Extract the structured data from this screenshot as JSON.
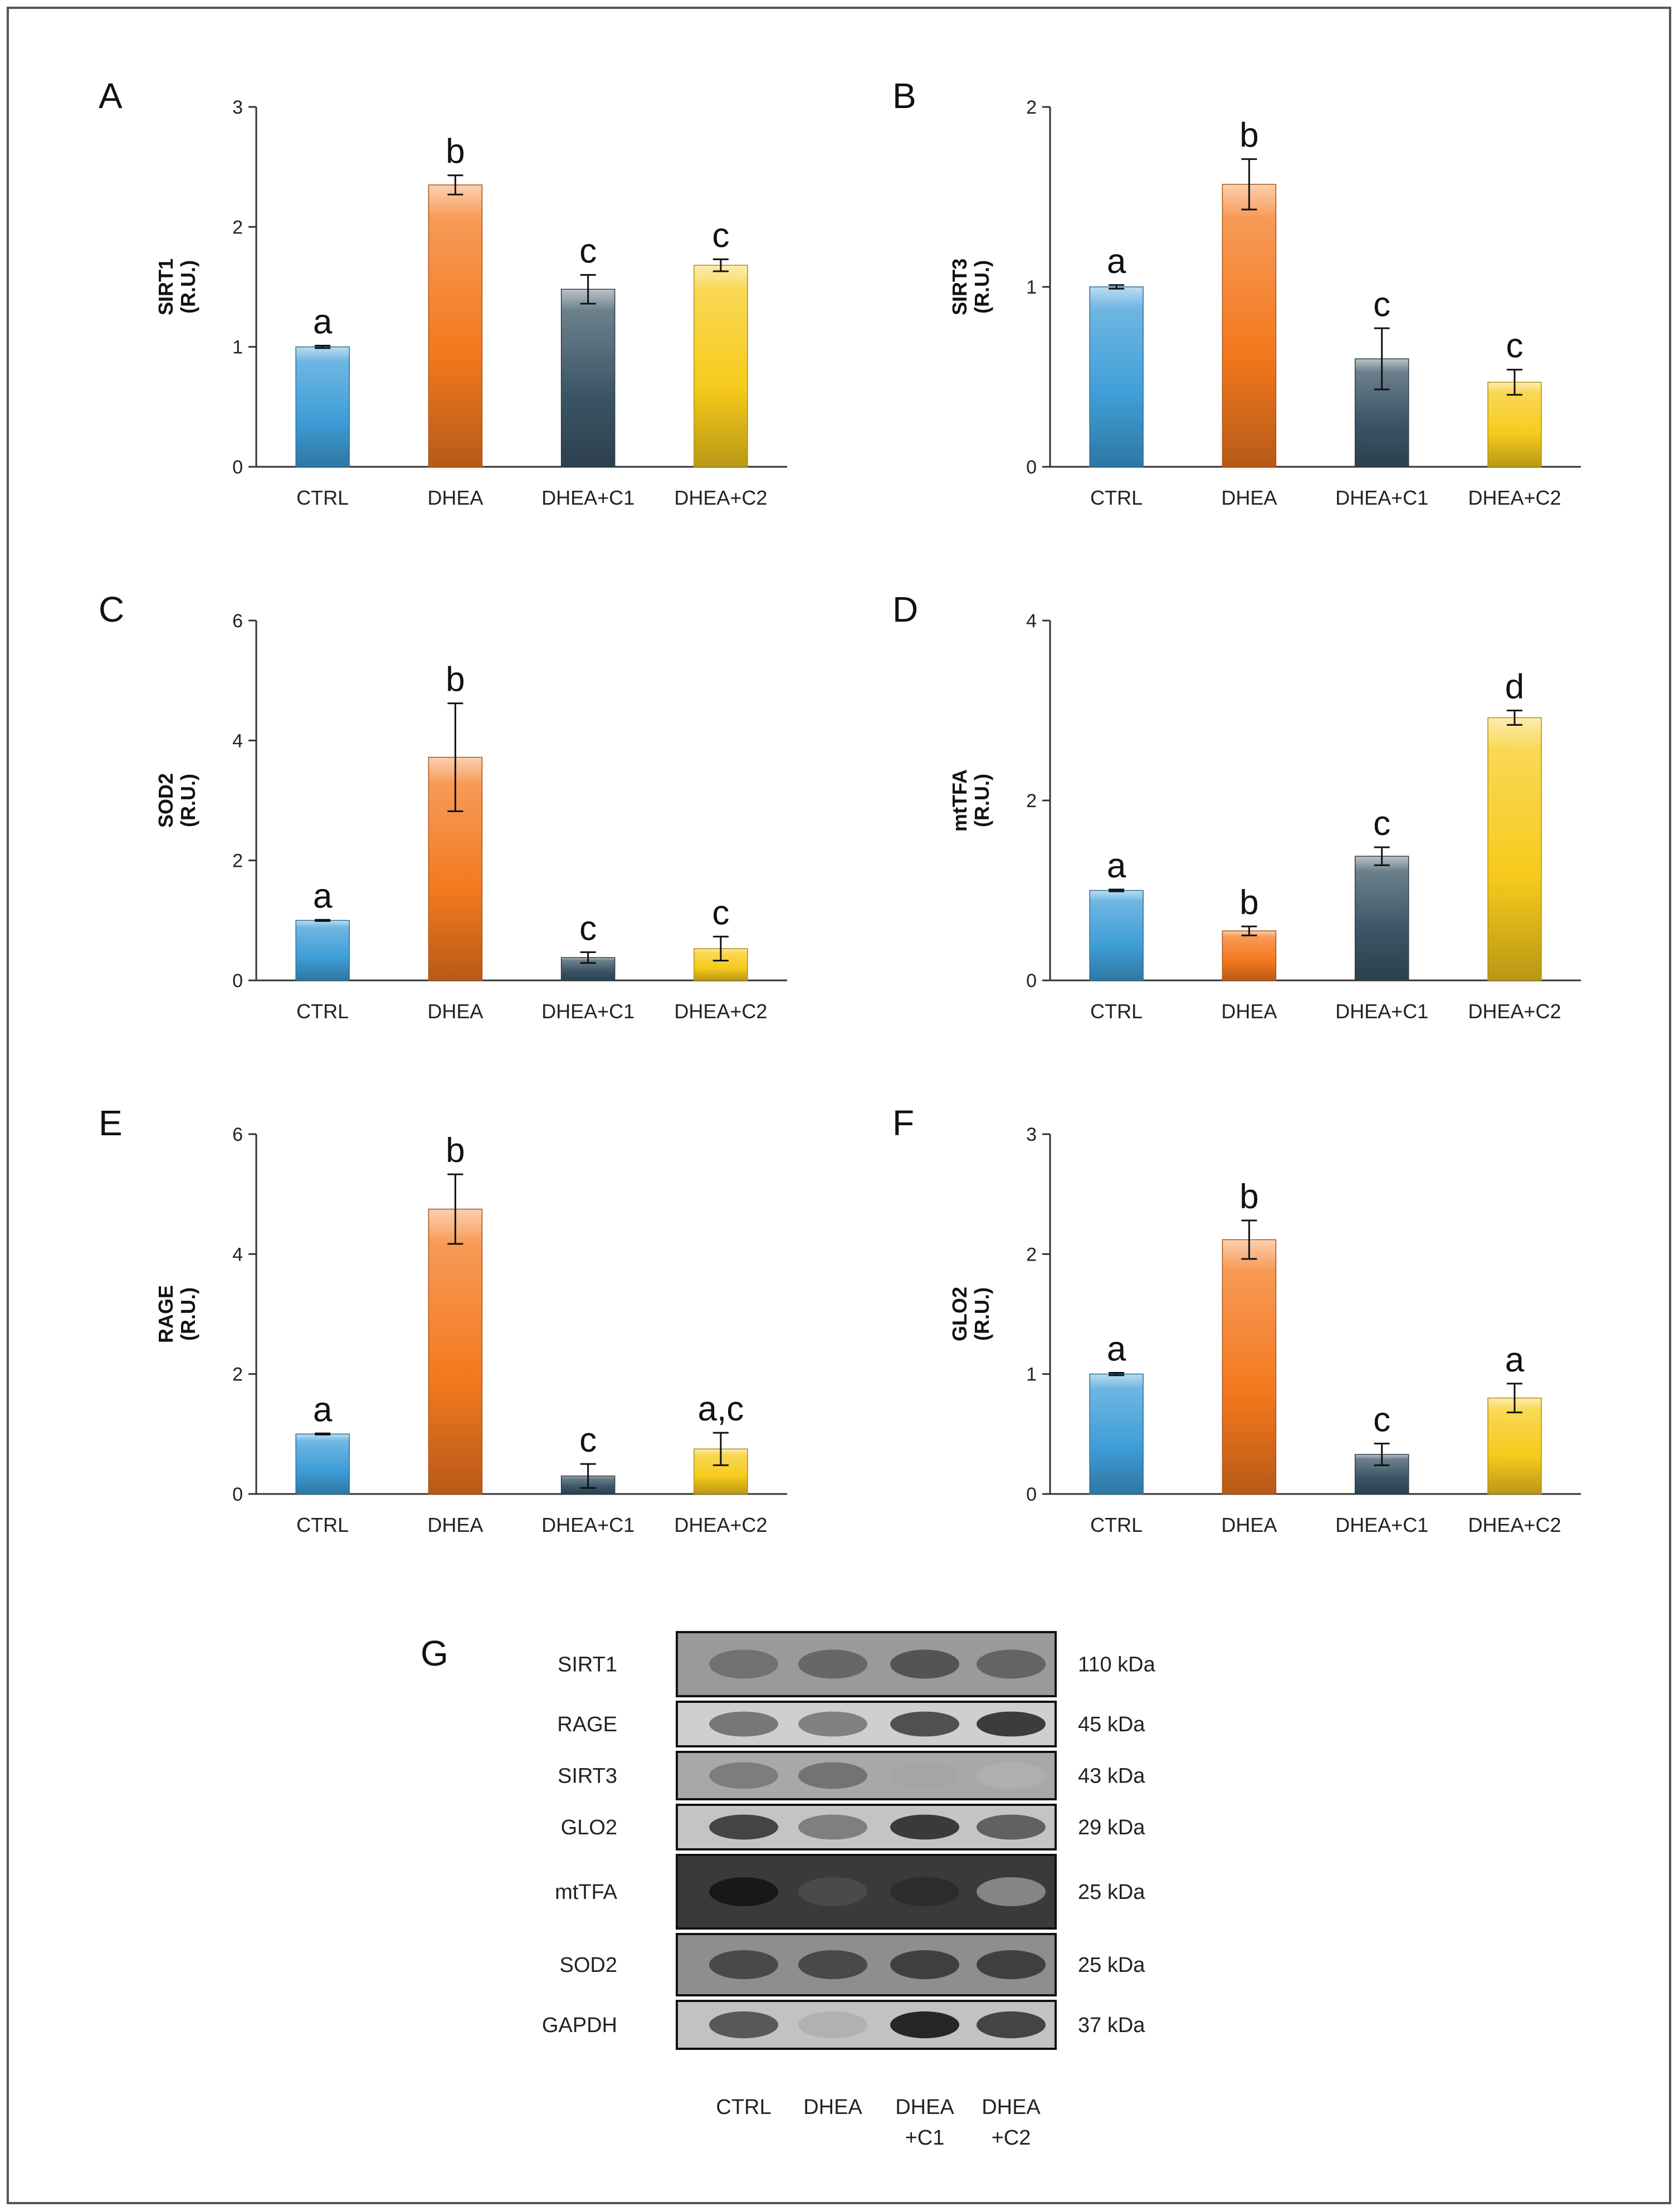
{
  "colors": {
    "CTRL": "#3f9ed8",
    "DHEA": "#f4781e",
    "DHEA+C1": "#3b5566",
    "DHEA+C2": "#f7cb1c",
    "axis": "#333333",
    "frame": "#555555"
  },
  "chart_data": [
    {
      "panel": "A",
      "type": "bar",
      "ylabel": "SIRT1",
      "yunit": "(R.U.)",
      "categories": [
        "CTRL",
        "DHEA",
        "DHEA+C1",
        "DHEA+C2"
      ],
      "values": [
        1.0,
        2.35,
        1.48,
        1.68
      ],
      "errors": [
        0.01,
        0.08,
        0.12,
        0.05
      ],
      "letters": [
        "a",
        "b",
        "c",
        "c"
      ],
      "ylim": [
        0,
        3
      ],
      "ticks": [
        0,
        1,
        2,
        3
      ],
      "tick_labels": [
        "0",
        "1",
        "2",
        "3"
      ]
    },
    {
      "panel": "B",
      "type": "bar",
      "ylabel": "SIRT3",
      "yunit": "(R.U.)",
      "categories": [
        "CTRL",
        "DHEA",
        "DHEA+C1",
        "DHEA+C2"
      ],
      "values": [
        1.0,
        1.57,
        0.6,
        0.47
      ],
      "errors": [
        0.01,
        0.14,
        0.17,
        0.07
      ],
      "letters": [
        "a",
        "b",
        "c",
        "c"
      ],
      "ylim": [
        0,
        2
      ],
      "ticks": [
        0,
        1,
        2
      ],
      "tick_labels": [
        "0",
        "1",
        "2"
      ]
    },
    {
      "panel": "C",
      "type": "bar",
      "ylabel": "SOD2",
      "yunit": "(R.U.)",
      "categories": [
        "CTRL",
        "DHEA",
        "DHEA+C1",
        "DHEA+C2"
      ],
      "values": [
        1.0,
        3.72,
        0.38,
        0.53
      ],
      "errors": [
        0.01,
        0.9,
        0.09,
        0.2
      ],
      "letters": [
        "a",
        "b",
        "c",
        "c"
      ],
      "ylim": [
        0,
        6
      ],
      "ticks": [
        0,
        2,
        4,
        6
      ],
      "tick_labels": [
        "0",
        "2",
        "4",
        "6"
      ]
    },
    {
      "panel": "D",
      "type": "bar",
      "ylabel": "mtTFA",
      "yunit": "(R.U.)",
      "categories": [
        "CTRL",
        "DHEA",
        "DHEA+C1",
        "DHEA+C2"
      ],
      "values": [
        1.0,
        0.55,
        1.38,
        2.92
      ],
      "errors": [
        0.01,
        0.05,
        0.1,
        0.08
      ],
      "letters": [
        "a",
        "b",
        "c",
        "d"
      ],
      "ylim": [
        0,
        4
      ],
      "ticks": [
        0,
        2,
        4
      ],
      "tick_labels": [
        "0",
        "2",
        "4"
      ]
    },
    {
      "panel": "E",
      "type": "bar",
      "ylabel": "RAGE",
      "yunit": "(R.U.)",
      "categories": [
        "CTRL",
        "DHEA",
        "DHEA+C1",
        "DHEA+C2"
      ],
      "values": [
        1.0,
        4.75,
        0.3,
        0.75
      ],
      "errors": [
        0.01,
        0.58,
        0.2,
        0.27
      ],
      "letters": [
        "a",
        "b",
        "c",
        "a,c"
      ],
      "ylim": [
        0,
        6
      ],
      "ticks": [
        0,
        2,
        4,
        6
      ],
      "tick_labels": [
        "0",
        "2",
        "4",
        "6"
      ]
    },
    {
      "panel": "F",
      "type": "bar",
      "ylabel": "GLO2",
      "yunit": "(R.U.)",
      "categories": [
        "CTRL",
        "DHEA",
        "DHEA+C1",
        "DHEA+C2"
      ],
      "values": [
        1.0,
        2.12,
        0.33,
        0.8
      ],
      "errors": [
        0.01,
        0.16,
        0.09,
        0.12
      ],
      "letters": [
        "a",
        "b",
        "c",
        "a"
      ],
      "ylim": [
        0,
        3
      ],
      "ticks": [
        0,
        1,
        2,
        3
      ],
      "tick_labels": [
        "0",
        "1",
        "2",
        "3"
      ]
    }
  ],
  "western_blot": {
    "panel": "G",
    "rows": [
      {
        "protein": "SIRT1",
        "kda": "110 kDa"
      },
      {
        "protein": "RAGE",
        "kda": "45 kDa"
      },
      {
        "protein": "SIRT3",
        "kda": "43 kDa"
      },
      {
        "protein": "GLO2",
        "kda": "29 kDa"
      },
      {
        "protein": "mtTFA",
        "kda": "25 kDa"
      },
      {
        "protein": "SOD2",
        "kda": "25 kDa"
      },
      {
        "protein": "GAPDH",
        "kda": "37 kDa"
      }
    ],
    "lanes": [
      {
        "line1": "CTRL",
        "line2": ""
      },
      {
        "line1": "DHEA",
        "line2": ""
      },
      {
        "line1": "DHEA",
        "line2": "+C1"
      },
      {
        "line1": "DHEA",
        "line2": "+C2"
      }
    ]
  }
}
